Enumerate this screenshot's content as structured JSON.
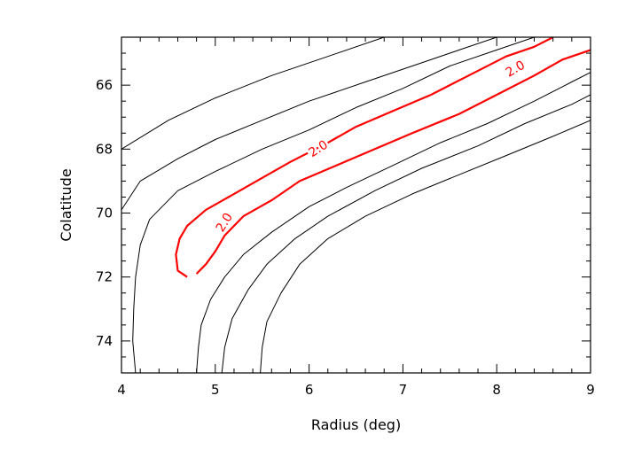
{
  "chart_data": {
    "type": "contour",
    "title": "",
    "xlabel": "Radius (deg)",
    "ylabel": "Colatitude",
    "xlim": [
      4,
      9
    ],
    "ylim": [
      75,
      64.5
    ],
    "y_inverted": true,
    "x_ticks": [
      4,
      5,
      6,
      7,
      8,
      9
    ],
    "y_ticks": [
      66,
      68,
      70,
      72,
      74
    ],
    "x_minor_step": 0.2,
    "y_minor_step": 0.5,
    "grid": false,
    "highlight_color": "#ff0000",
    "line_color": "#000000",
    "contours": [
      {
        "highlight": false,
        "points": [
          [
            4.0,
            68.0
          ],
          [
            4.5,
            67.1
          ],
          [
            5.0,
            66.4
          ],
          [
            5.6,
            65.7
          ],
          [
            6.2,
            65.1
          ],
          [
            6.8,
            64.5
          ]
        ]
      },
      {
        "highlight": false,
        "points": [
          [
            4.0,
            69.9
          ],
          [
            4.2,
            69.0
          ],
          [
            4.6,
            68.3
          ],
          [
            5.0,
            67.7
          ],
          [
            5.5,
            67.1
          ],
          [
            6.0,
            66.5
          ],
          [
            6.6,
            65.9
          ],
          [
            7.2,
            65.3
          ],
          [
            7.6,
            64.9
          ],
          [
            8.0,
            64.5
          ]
        ]
      },
      {
        "highlight": false,
        "points": [
          [
            4.15,
            75.0
          ],
          [
            4.12,
            74.0
          ],
          [
            4.13,
            73.0
          ],
          [
            4.15,
            72.0
          ],
          [
            4.2,
            71.0
          ],
          [
            4.3,
            70.2
          ],
          [
            4.6,
            69.3
          ],
          [
            5.0,
            68.7
          ],
          [
            5.5,
            68.0
          ],
          [
            6.0,
            67.4
          ],
          [
            6.5,
            66.7
          ],
          [
            7.0,
            66.1
          ],
          [
            7.5,
            65.4
          ],
          [
            8.0,
            64.9
          ],
          [
            8.4,
            64.5
          ]
        ]
      },
      {
        "highlight": true,
        "label": "2.0",
        "points": [
          [
            4.7,
            72.0
          ],
          [
            4.6,
            71.8
          ],
          [
            4.58,
            71.3
          ],
          [
            4.62,
            70.8
          ],
          [
            4.7,
            70.4
          ],
          [
            4.9,
            69.9
          ],
          [
            5.2,
            69.4
          ],
          [
            5.5,
            68.9
          ],
          [
            5.8,
            68.4
          ],
          [
            6.2,
            67.8
          ],
          [
            6.5,
            67.3
          ],
          [
            6.9,
            66.8
          ],
          [
            7.3,
            66.3
          ],
          [
            7.7,
            65.7
          ],
          [
            8.1,
            65.1
          ],
          [
            8.4,
            64.8
          ],
          [
            8.6,
            64.5
          ]
        ]
      },
      {
        "highlight": true,
        "label": "2.0",
        "points": [
          [
            4.8,
            71.9
          ],
          [
            4.9,
            71.6
          ],
          [
            5.0,
            71.2
          ],
          [
            5.1,
            70.7
          ],
          [
            5.3,
            70.1
          ],
          [
            5.6,
            69.6
          ],
          [
            5.9,
            69.0
          ],
          [
            6.3,
            68.5
          ],
          [
            6.7,
            68.0
          ],
          [
            7.1,
            67.5
          ],
          [
            7.6,
            66.9
          ],
          [
            8.0,
            66.3
          ],
          [
            8.4,
            65.7
          ],
          [
            8.7,
            65.2
          ],
          [
            9.0,
            64.9
          ]
        ]
      },
      {
        "highlight": false,
        "points": [
          [
            4.8,
            75.0
          ],
          [
            4.82,
            74.2
          ],
          [
            4.85,
            73.5
          ],
          [
            4.95,
            72.7
          ],
          [
            5.1,
            72.0
          ],
          [
            5.3,
            71.3
          ],
          [
            5.6,
            70.6
          ],
          [
            6.0,
            69.8
          ],
          [
            6.4,
            69.2
          ],
          [
            6.9,
            68.5
          ],
          [
            7.4,
            67.8
          ],
          [
            7.9,
            67.2
          ],
          [
            8.4,
            66.5
          ],
          [
            8.8,
            65.9
          ],
          [
            9.0,
            65.6
          ]
        ]
      },
      {
        "highlight": false,
        "points": [
          [
            5.07,
            75.0
          ],
          [
            5.1,
            74.2
          ],
          [
            5.18,
            73.3
          ],
          [
            5.35,
            72.4
          ],
          [
            5.55,
            71.6
          ],
          [
            5.85,
            70.8
          ],
          [
            6.2,
            70.1
          ],
          [
            6.7,
            69.3
          ],
          [
            7.2,
            68.6
          ],
          [
            7.8,
            67.9
          ],
          [
            8.3,
            67.2
          ],
          [
            8.8,
            66.6
          ],
          [
            9.0,
            66.3
          ]
        ]
      },
      {
        "highlight": false,
        "points": [
          [
            5.48,
            75.0
          ],
          [
            5.5,
            74.2
          ],
          [
            5.55,
            73.4
          ],
          [
            5.7,
            72.5
          ],
          [
            5.9,
            71.6
          ],
          [
            6.2,
            70.8
          ],
          [
            6.6,
            70.1
          ],
          [
            7.1,
            69.4
          ],
          [
            7.6,
            68.8
          ],
          [
            8.1,
            68.2
          ],
          [
            8.6,
            67.6
          ],
          [
            9.0,
            67.1
          ]
        ]
      }
    ],
    "labels": [
      {
        "text": "2.0",
        "x": 6.1,
        "y": 68.0,
        "angle": -32
      },
      {
        "text": "2.0",
        "x": 8.2,
        "y": 65.5,
        "angle": -30
      },
      {
        "text": "2.0",
        "x": 5.1,
        "y": 70.3,
        "angle": -58
      }
    ]
  }
}
